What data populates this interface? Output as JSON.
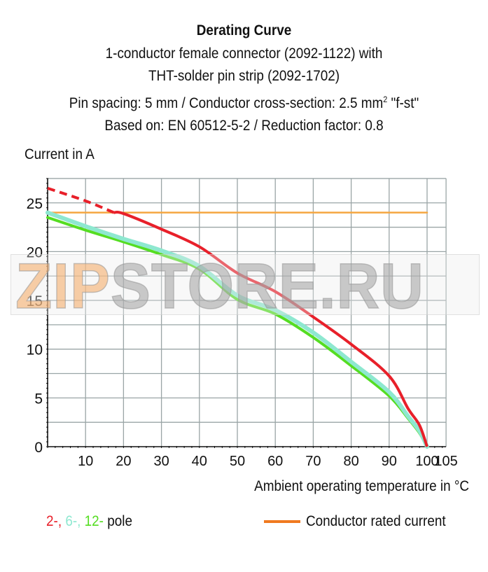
{
  "header": {
    "title": "Derating Curve",
    "line1": "1-conductor female connector (2092-1122) with",
    "line2": "THT-solder pin strip (2092-1702)",
    "line3_pre": "Pin spacing: 5 mm / Conductor cross-section: 2.5 mm",
    "line3_sup": "2",
    "line3_post": " \"f-st\"",
    "line4": "Based on: EN 60512-5-2 / Reduction factor: 0.8"
  },
  "axes": {
    "ylabel": "Current in A",
    "xlabel": "Ambient operating temperature in °C"
  },
  "legend": {
    "poles": [
      {
        "label": "2-",
        "color": "#e8202a"
      },
      {
        "label": ", ",
        "color": "#e8202a"
      },
      {
        "label": "6-",
        "color": "#8ee8d0"
      },
      {
        "label": ", ",
        "color": "#8ee8d0"
      },
      {
        "label": "12-",
        "color": "#55dd22"
      }
    ],
    "pole_suffix": " pole",
    "rated_label": "Conductor rated current",
    "rated_color": "#f07a20"
  },
  "watermark": {
    "part1": "ZIP",
    "part2": "STORE.RU"
  },
  "chart_data": {
    "type": "line",
    "title": "Derating Curve",
    "xlabel": "Ambient operating temperature in °C",
    "ylabel": "Current in A",
    "xlim": [
      0,
      105
    ],
    "ylim": [
      0,
      27.5
    ],
    "x_ticks": [
      10,
      20,
      30,
      40,
      50,
      60,
      70,
      80,
      90,
      100,
      105
    ],
    "y_ticks": [
      0,
      5,
      10,
      15,
      20,
      25
    ],
    "grid": true,
    "grid_x_step": 10,
    "grid_y_step": 2.5,
    "legend_position": "bottom",
    "series": [
      {
        "name": "2-pole",
        "color": "#e8202a",
        "dashed_until_x": 17.5,
        "x": [
          0,
          10,
          17.5,
          20,
          30,
          40,
          50,
          60,
          70,
          80,
          90,
          95,
          98,
          100
        ],
        "values": [
          26.5,
          25.2,
          24.0,
          23.9,
          22.3,
          20.5,
          17.8,
          15.9,
          13.3,
          10.5,
          7.25,
          3.9,
          2.2,
          0
        ]
      },
      {
        "name": "6-pole",
        "color": "#8ee8d0",
        "x": [
          0,
          10,
          20,
          30,
          40,
          50,
          60,
          70,
          80,
          90,
          95,
          98,
          100
        ],
        "values": [
          24.0,
          22.6,
          21.3,
          20.1,
          18.5,
          15.5,
          14.0,
          11.7,
          8.7,
          5.6,
          3.1,
          1.6,
          0
        ]
      },
      {
        "name": "12-pole",
        "color": "#55dd22",
        "x": [
          0,
          10,
          20,
          30,
          40,
          50,
          60,
          70,
          80,
          90,
          95,
          98,
          100
        ],
        "values": [
          23.5,
          22.2,
          21.0,
          19.7,
          18.2,
          15.1,
          13.6,
          11.2,
          8.3,
          5.2,
          2.9,
          1.4,
          0
        ]
      },
      {
        "name": "Conductor rated current",
        "color": "#f5a640",
        "x": [
          0,
          100
        ],
        "values": [
          24.0,
          24.0
        ]
      }
    ]
  }
}
